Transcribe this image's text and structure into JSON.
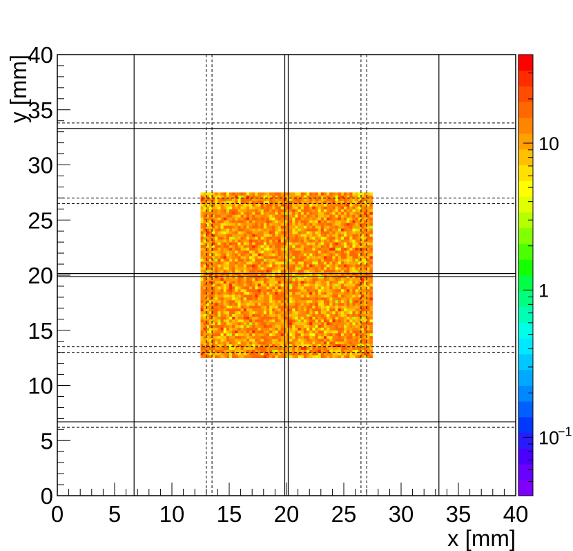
{
  "chart_data": {
    "type": "heatmap",
    "title": "",
    "xlabel": "x [mm]",
    "ylabel": "y [mm]",
    "xlim": [
      0,
      40
    ],
    "ylim": [
      0,
      40
    ],
    "xticks": [
      "0",
      "5",
      "10",
      "15",
      "20",
      "25",
      "30",
      "35",
      "40"
    ],
    "yticks": [
      "0",
      "5",
      "10",
      "15",
      "20",
      "25",
      "30",
      "35",
      "40"
    ],
    "z_scale": "log",
    "zlim": [
      0.04,
      40
    ],
    "colorbar_ticks": [
      {
        "value": 0.1,
        "label": "10",
        "exponent": "−1"
      },
      {
        "value": 1,
        "label": "1",
        "exponent": ""
      },
      {
        "value": 10,
        "label": "10",
        "exponent": ""
      }
    ],
    "filled_region": {
      "x_range": [
        12.5,
        27.5
      ],
      "y_range": [
        12.5,
        27.5
      ],
      "bin_size_mm": 0.25,
      "typical_counts": [
        3,
        30
      ],
      "note_values": "per-bin counts mostly between 5 and 20"
    },
    "solid_lines_x": [
      6.7,
      19.85,
      20.15,
      33.3
    ],
    "solid_lines_y": [
      6.7,
      19.85,
      20.15,
      33.3
    ],
    "dashed_lines_x": [
      13.0,
      13.5,
      26.5,
      27.0
    ],
    "dashed_lines_y": [
      6.2,
      13.0,
      13.5,
      26.5,
      27.0,
      33.8
    ]
  }
}
